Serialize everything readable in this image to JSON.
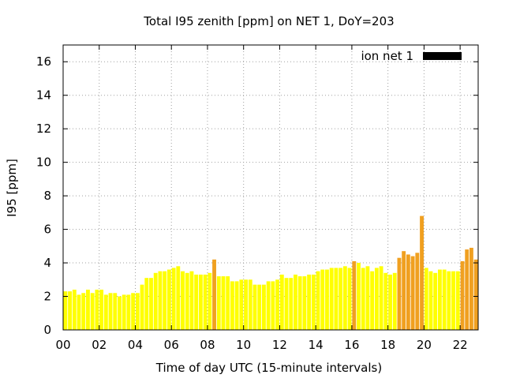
{
  "chart_data": {
    "type": "bar",
    "title": "Total I95 zenith [ppm] on NET 1, DoY=203",
    "xlabel": "Time of day UTC (15-minute intervals)",
    "ylabel": "I95 [ppm]",
    "xlim": [
      0,
      23
    ],
    "ylim": [
      0,
      17
    ],
    "xticks": [
      0,
      2,
      4,
      6,
      8,
      10,
      12,
      14,
      16,
      18,
      20,
      22
    ],
    "xtick_labels": [
      "00",
      "02",
      "04",
      "06",
      "08",
      "10",
      "12",
      "14",
      "16",
      "18",
      "20",
      "22"
    ],
    "yticks": [
      0,
      2,
      4,
      6,
      8,
      10,
      12,
      14,
      16
    ],
    "ytick_labels": [
      "0",
      "2",
      "4",
      "6",
      "8",
      "10",
      "12",
      "14",
      "16"
    ],
    "grid": true,
    "legend": {
      "label": "ion net 1",
      "color": "#000000",
      "position": "top-right"
    },
    "threshold": 4,
    "colors": {
      "normal": "#ffff00",
      "elevated": "#f0a020"
    },
    "x": [
      0.125,
      0.375,
      0.625,
      0.875,
      1.125,
      1.375,
      1.625,
      1.875,
      2.125,
      2.375,
      2.625,
      2.875,
      3.125,
      3.375,
      3.625,
      3.875,
      4.125,
      4.375,
      4.625,
      4.875,
      5.125,
      5.375,
      5.625,
      5.875,
      6.125,
      6.375,
      6.625,
      6.875,
      7.125,
      7.375,
      7.625,
      7.875,
      8.125,
      8.375,
      8.625,
      8.875,
      9.125,
      9.375,
      9.625,
      9.875,
      10.125,
      10.375,
      10.625,
      10.875,
      11.125,
      11.375,
      11.625,
      11.875,
      12.125,
      12.375,
      12.625,
      12.875,
      13.125,
      13.375,
      13.625,
      13.875,
      14.125,
      14.375,
      14.625,
      14.875,
      15.125,
      15.375,
      15.625,
      15.875,
      16.125,
      16.375,
      16.625,
      16.875,
      17.125,
      17.375,
      17.625,
      17.875,
      18.125,
      18.375,
      18.625,
      18.875,
      19.125,
      19.375,
      19.625,
      19.875,
      20.125,
      20.375,
      20.625,
      20.875,
      21.125,
      21.375,
      21.625,
      21.875,
      22.125,
      22.375,
      22.625,
      22.875
    ],
    "values": [
      2.3,
      2.3,
      2.4,
      2.1,
      2.2,
      2.4,
      2.2,
      2.4,
      2.4,
      2.1,
      2.2,
      2.2,
      2.0,
      2.1,
      2.1,
      2.2,
      2.2,
      2.7,
      3.1,
      3.1,
      3.4,
      3.5,
      3.5,
      3.6,
      3.7,
      3.8,
      3.5,
      3.4,
      3.5,
      3.3,
      3.3,
      3.3,
      3.4,
      4.2,
      3.2,
      3.2,
      3.2,
      2.9,
      2.9,
      3.0,
      3.0,
      3.0,
      2.7,
      2.7,
      2.7,
      2.9,
      2.9,
      3.0,
      3.3,
      3.1,
      3.1,
      3.3,
      3.2,
      3.2,
      3.3,
      3.3,
      3.5,
      3.6,
      3.6,
      3.7,
      3.7,
      3.7,
      3.8,
      3.7,
      4.1,
      4.0,
      3.7,
      3.8,
      3.5,
      3.7,
      3.8,
      3.4,
      3.3,
      3.4,
      4.3,
      4.7,
      4.5,
      4.4,
      4.6,
      6.8,
      3.7,
      3.5,
      3.4,
      3.6,
      3.6,
      3.5,
      3.5,
      3.5,
      4.1,
      4.8,
      4.9,
      4.2
    ]
  }
}
